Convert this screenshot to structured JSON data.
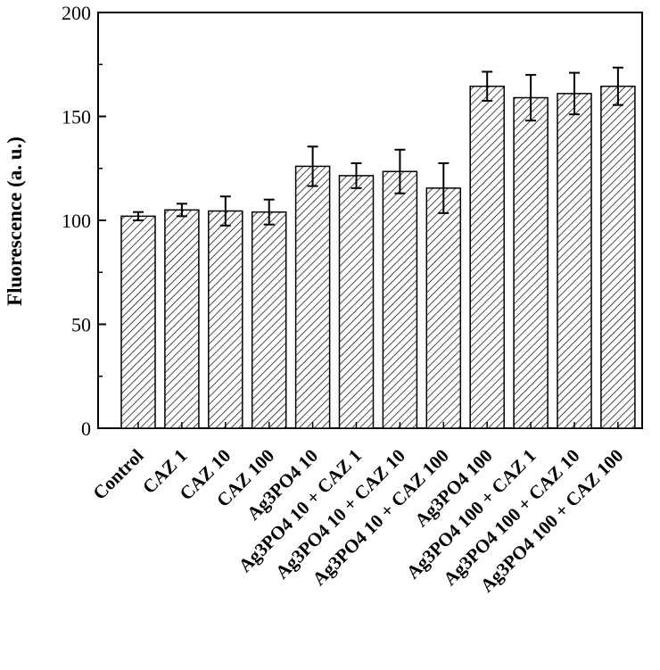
{
  "chart_data": {
    "type": "bar",
    "title": "",
    "xlabel": "",
    "ylabel": "Fluorescence (a. u.)",
    "ylim": [
      0,
      200
    ],
    "yticks": [
      0,
      50,
      100,
      150,
      200
    ],
    "grid": false,
    "legend": "none",
    "bar_pattern": "diagonal-hatch",
    "colors": {
      "bar_fill": "#ffffff",
      "hatch": "#000000",
      "axis": "#000000"
    },
    "categories": [
      "Control",
      "CAZ 1",
      "CAZ 10",
      "CAZ 100",
      "Ag3PO4 10",
      "Ag3PO4 10 + CAZ 1",
      "Ag3PO4 10 + CAZ 10",
      "Ag3PO4 10 + CAZ 100",
      "Ag3PO4 100",
      "Ag3PO4 100 + CAZ 1",
      "Ag3PO4 100 + CAZ 10",
      "Ag3PO4 100 + CAZ 100"
    ],
    "values": [
      102,
      105,
      104.5,
      104,
      126,
      121.5,
      123.5,
      115.5,
      164.5,
      159,
      161,
      164.5
    ],
    "errors": [
      2,
      3,
      7,
      6,
      9.5,
      6,
      10.5,
      12,
      7,
      11,
      10,
      9
    ]
  }
}
